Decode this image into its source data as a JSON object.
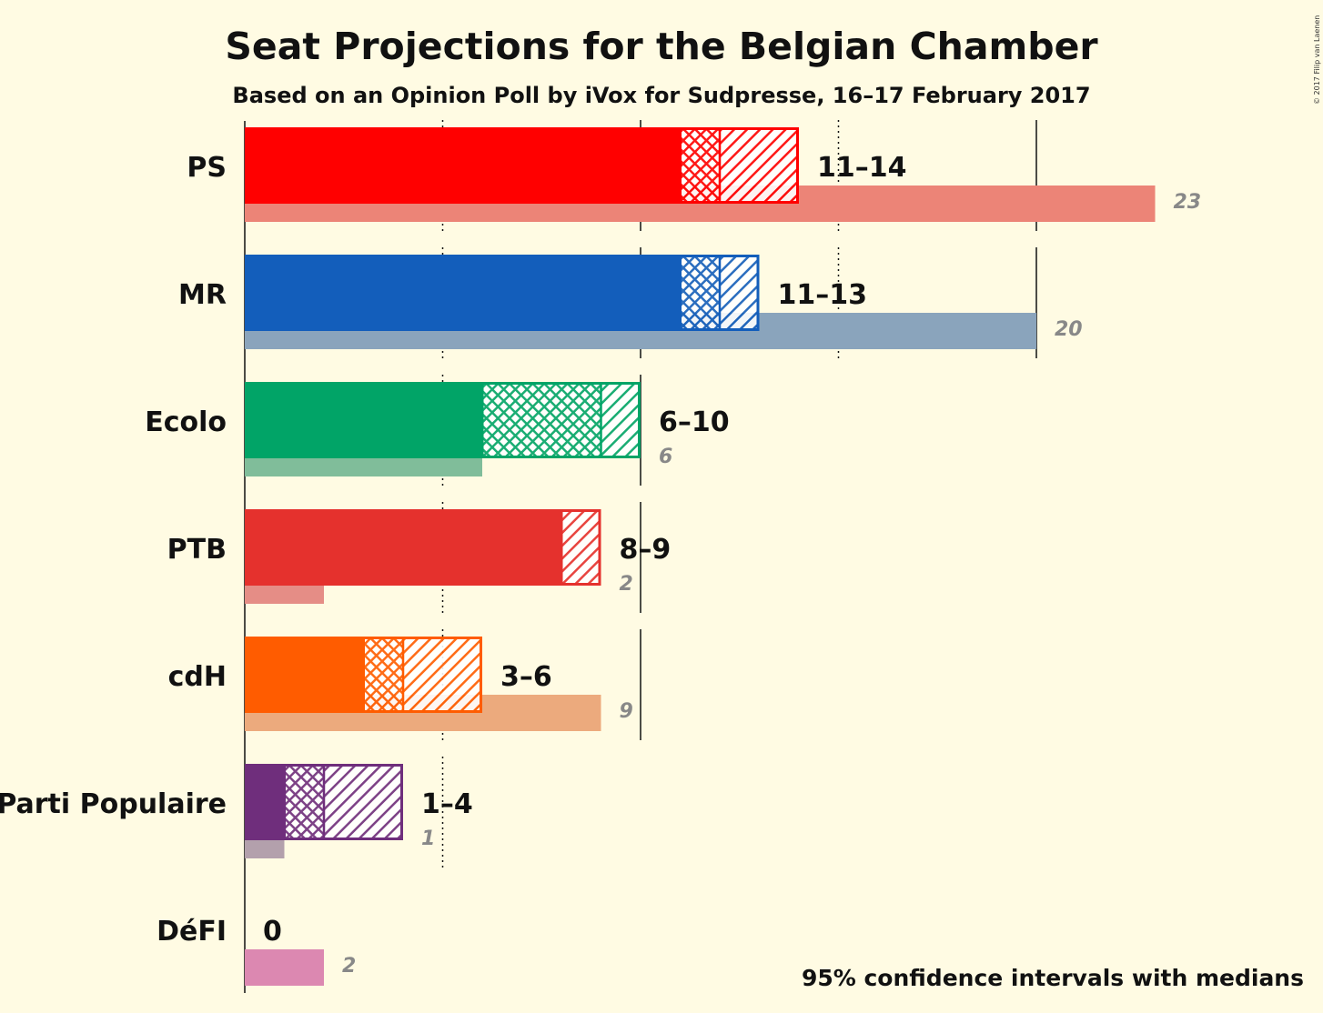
{
  "title": "Seat Projections for the Belgian Chamber",
  "subtitle": "Based on an Opinion Poll by iVox for Sudpresse, 16–17 February 2017",
  "footnote": "95% confidence intervals with medians",
  "copyright": "© 2017 Filip van Laenen",
  "chart_data": {
    "type": "bar",
    "title": "Seat Projections for the Belgian Chamber",
    "subtitle": "Based on an Opinion Poll by iVox for Sudpresse, 16–17 February 2017",
    "gridlines": [
      5,
      10,
      15,
      20
    ],
    "majority_lines": [
      10,
      20
    ],
    "legend": "95% confidence intervals with medians",
    "parties": [
      {
        "name": "PS",
        "low": 11,
        "median": 12,
        "high": 14,
        "label": "11–14",
        "last": 23,
        "color": "#ff0000",
        "last_color": "#ec8477"
      },
      {
        "name": "MR",
        "low": 11,
        "median": 12,
        "high": 13,
        "label": "11–13",
        "last": 20,
        "color": "#135ebb",
        "last_color": "#8aa4bc"
      },
      {
        "name": "Ecolo",
        "low": 6,
        "median": 9,
        "high": 10,
        "label": "6–10",
        "last": 6,
        "color": "#01a467",
        "last_color": "#80bd9a"
      },
      {
        "name": "PTB",
        "low": 8,
        "median": 8,
        "high": 9,
        "label": "8–9",
        "last": 2,
        "color": "#e5312d",
        "last_color": "#e58d86"
      },
      {
        "name": "cdH",
        "low": 3,
        "median": 4,
        "high": 6,
        "label": "3–6",
        "last": 9,
        "color": "#ff5c00",
        "last_color": "#ecaa7d"
      },
      {
        "name": "Parti Populaire",
        "low": 1,
        "median": 2,
        "high": 4,
        "label": "1–4",
        "last": 1,
        "color": "#6f2e7c",
        "last_color": "#b3a0ac"
      },
      {
        "name": "DéFI",
        "low": 0,
        "median": 0,
        "high": 0,
        "label": "0",
        "last": 2,
        "color": "#dc88b1",
        "last_color": "#dc88b1"
      }
    ]
  }
}
